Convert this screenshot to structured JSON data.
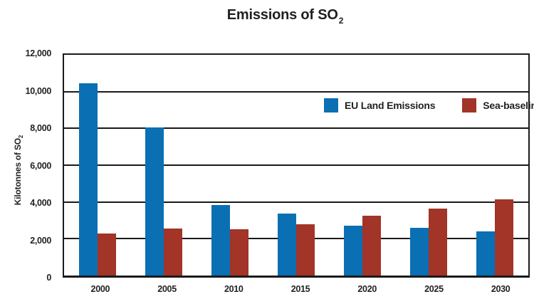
{
  "chart": {
    "title_main": "Emissions of SO",
    "title_sub": "2",
    "y_axis_label_main": "Kilotonnes of SO",
    "y_axis_label_sub": "2"
  },
  "chart_data": {
    "type": "bar",
    "title": "Emissions of SO2",
    "xlabel": "",
    "ylabel": "Kilotonnes of SO2",
    "categories": [
      "2000",
      "2005",
      "2010",
      "2015",
      "2020",
      "2025",
      "2030"
    ],
    "series": [
      {
        "name": "EU Land Emissions",
        "color": "#0B6FB4",
        "values": [
          10450,
          8050,
          3850,
          3350,
          2700,
          2600,
          2400
        ]
      },
      {
        "name": "Sea-baseline",
        "color": "#A23428",
        "values": [
          2300,
          2550,
          2500,
          2800,
          3250,
          3650,
          4150
        ]
      }
    ],
    "ylim": [
      0,
      12000
    ],
    "ytick_values": [
      0,
      2000,
      4000,
      6000,
      8000,
      10000,
      12000
    ],
    "ytick_labels": [
      "0",
      "2,000",
      "4,000",
      "6,000",
      "8,000",
      "10,000",
      "12,000"
    ],
    "grid": true,
    "gridline_color": "#1a1a1a",
    "legend_position": "inside-top-right"
  }
}
